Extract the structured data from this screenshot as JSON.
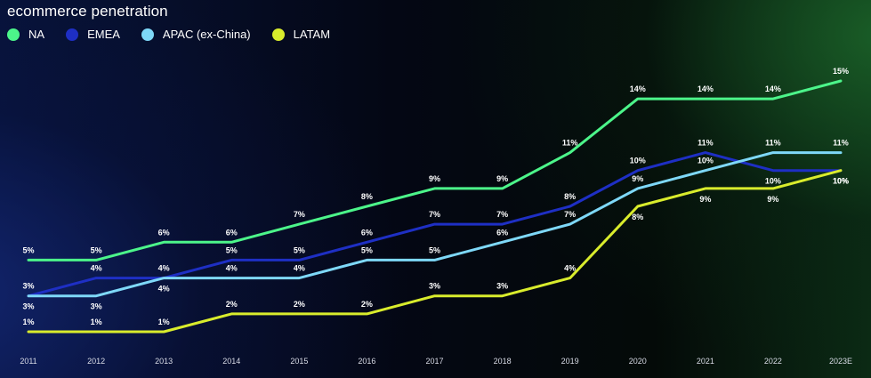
{
  "chart_data": {
    "type": "line",
    "title": "ecommerce penetration",
    "xlabel": "",
    "ylabel": "",
    "categories": [
      "2011",
      "2012",
      "2013",
      "2014",
      "2015",
      "2016",
      "2017",
      "2018",
      "2019",
      "2020",
      "2021",
      "2022",
      "2023E"
    ],
    "ylim": [
      1,
      15
    ],
    "grid": false,
    "legend_position": "top-left",
    "series": [
      {
        "name": "NA",
        "color": "#4cf58a",
        "values": [
          5,
          5,
          6,
          6,
          7,
          8,
          9,
          9,
          11,
          14,
          14,
          14,
          15
        ],
        "labels": [
          "5%",
          "5%",
          "6%",
          "6%",
          "7%",
          "8%",
          "9%",
          "9%",
          "11%",
          "14%",
          "14%",
          "14%",
          "15%"
        ]
      },
      {
        "name": "EMEA",
        "color": "#1e2fc4",
        "values": [
          3,
          4,
          4,
          5,
          5,
          6,
          7,
          7,
          8,
          10,
          11,
          10,
          10
        ],
        "labels": [
          "3%",
          "4%",
          "4%",
          "5%",
          "5%",
          "6%",
          "7%",
          "7%",
          "8%",
          "10%",
          "11%",
          "10%",
          "10%"
        ]
      },
      {
        "name": "APAC (ex-China)",
        "color": "#7ed8f8",
        "values": [
          3,
          3,
          4,
          4,
          4,
          5,
          5,
          6,
          7,
          9,
          10,
          11,
          11
        ],
        "labels": [
          "3%",
          "3%",
          "4%",
          "4%",
          "4%",
          "5%",
          "5%",
          "6%",
          "7%",
          "9%",
          "10%",
          "11%",
          "11%"
        ]
      },
      {
        "name": "LATAM",
        "color": "#d9ec2c",
        "values": [
          1,
          1,
          1,
          2,
          2,
          2,
          3,
          3,
          4,
          8,
          9,
          9,
          10
        ],
        "labels": [
          "1%",
          "1%",
          "1%",
          "2%",
          "2%",
          "2%",
          "3%",
          "3%",
          "4%",
          "8%",
          "9%",
          "9%",
          "10%"
        ]
      }
    ]
  }
}
